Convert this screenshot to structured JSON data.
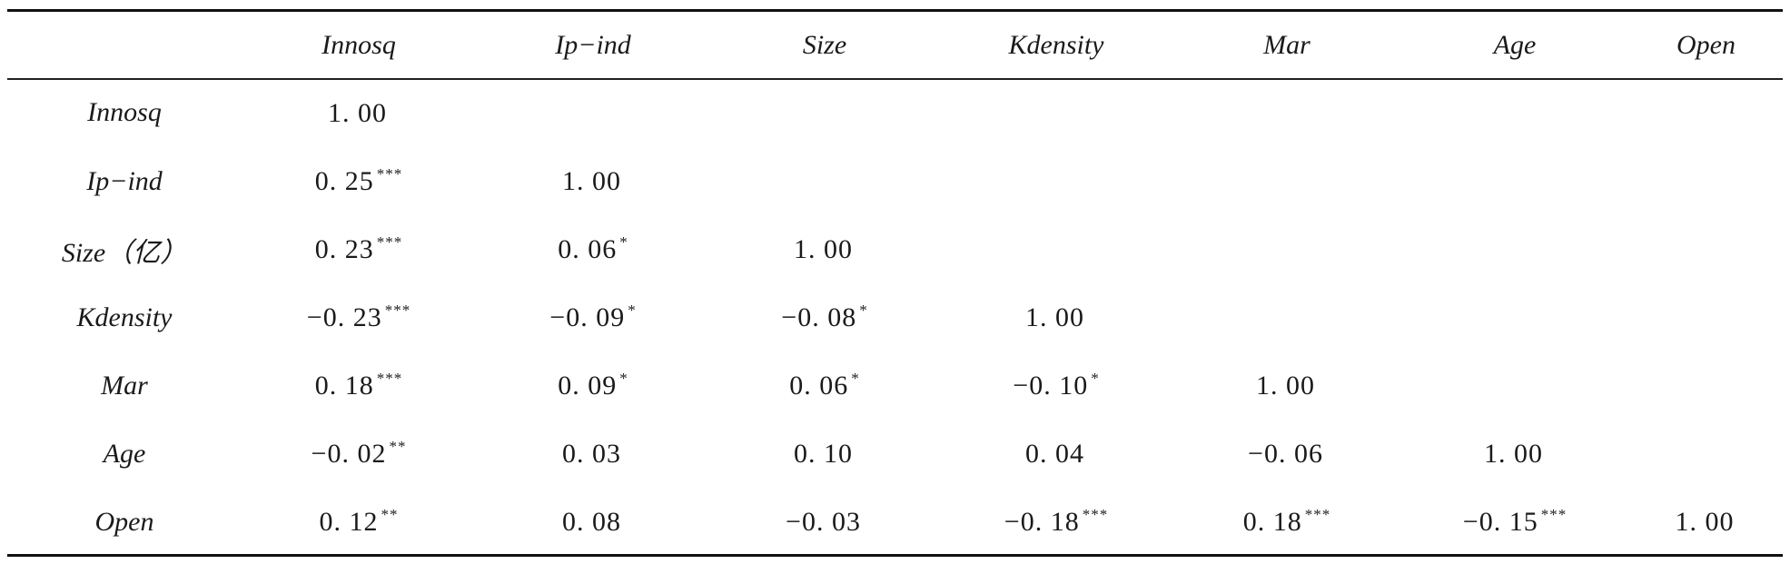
{
  "table": {
    "headers": [
      "",
      "Innosq",
      "Ip−ind",
      "Size",
      "Kdensity",
      "Mar",
      "Age",
      "Open"
    ],
    "rows": [
      {
        "label": "Innosq",
        "cells": [
          {
            "value": "1. 00",
            "sig": ""
          },
          {
            "value": "",
            "sig": ""
          },
          {
            "value": "",
            "sig": ""
          },
          {
            "value": "",
            "sig": ""
          },
          {
            "value": "",
            "sig": ""
          },
          {
            "value": "",
            "sig": ""
          },
          {
            "value": "",
            "sig": ""
          }
        ]
      },
      {
        "label": "Ip−ind",
        "cells": [
          {
            "value": "0. 25",
            "sig": "***"
          },
          {
            "value": "1. 00",
            "sig": ""
          },
          {
            "value": "",
            "sig": ""
          },
          {
            "value": "",
            "sig": ""
          },
          {
            "value": "",
            "sig": ""
          },
          {
            "value": "",
            "sig": ""
          },
          {
            "value": "",
            "sig": ""
          }
        ]
      },
      {
        "label": "Size（亿）",
        "cells": [
          {
            "value": "0. 23",
            "sig": "***"
          },
          {
            "value": "0. 06",
            "sig": "*"
          },
          {
            "value": "1. 00",
            "sig": ""
          },
          {
            "value": "",
            "sig": ""
          },
          {
            "value": "",
            "sig": ""
          },
          {
            "value": "",
            "sig": ""
          },
          {
            "value": "",
            "sig": ""
          }
        ]
      },
      {
        "label": "Kdensity",
        "cells": [
          {
            "value": "−0. 23",
            "sig": "***"
          },
          {
            "value": "−0. 09",
            "sig": "*"
          },
          {
            "value": "−0. 08",
            "sig": "*"
          },
          {
            "value": "1. 00",
            "sig": ""
          },
          {
            "value": "",
            "sig": ""
          },
          {
            "value": "",
            "sig": ""
          },
          {
            "value": "",
            "sig": ""
          }
        ]
      },
      {
        "label": "Mar",
        "cells": [
          {
            "value": "0. 18",
            "sig": "***"
          },
          {
            "value": "0. 09",
            "sig": "*"
          },
          {
            "value": "0. 06",
            "sig": "*"
          },
          {
            "value": "−0. 10",
            "sig": "*"
          },
          {
            "value": "1. 00",
            "sig": ""
          },
          {
            "value": "",
            "sig": ""
          },
          {
            "value": "",
            "sig": ""
          }
        ]
      },
      {
        "label": "Age",
        "cells": [
          {
            "value": "−0. 02",
            "sig": "**"
          },
          {
            "value": "0. 03",
            "sig": ""
          },
          {
            "value": "0. 10",
            "sig": ""
          },
          {
            "value": "0. 04",
            "sig": ""
          },
          {
            "value": "−0. 06",
            "sig": ""
          },
          {
            "value": "1. 00",
            "sig": ""
          },
          {
            "value": "",
            "sig": ""
          }
        ]
      },
      {
        "label": "Open",
        "cells": [
          {
            "value": "0. 12",
            "sig": "**"
          },
          {
            "value": "0. 08",
            "sig": ""
          },
          {
            "value": "−0. 03",
            "sig": ""
          },
          {
            "value": "−0. 18",
            "sig": "***"
          },
          {
            "value": "0. 18",
            "sig": "***"
          },
          {
            "value": "−0. 15",
            "sig": "***"
          },
          {
            "value": "1. 00",
            "sig": ""
          }
        ]
      }
    ]
  }
}
